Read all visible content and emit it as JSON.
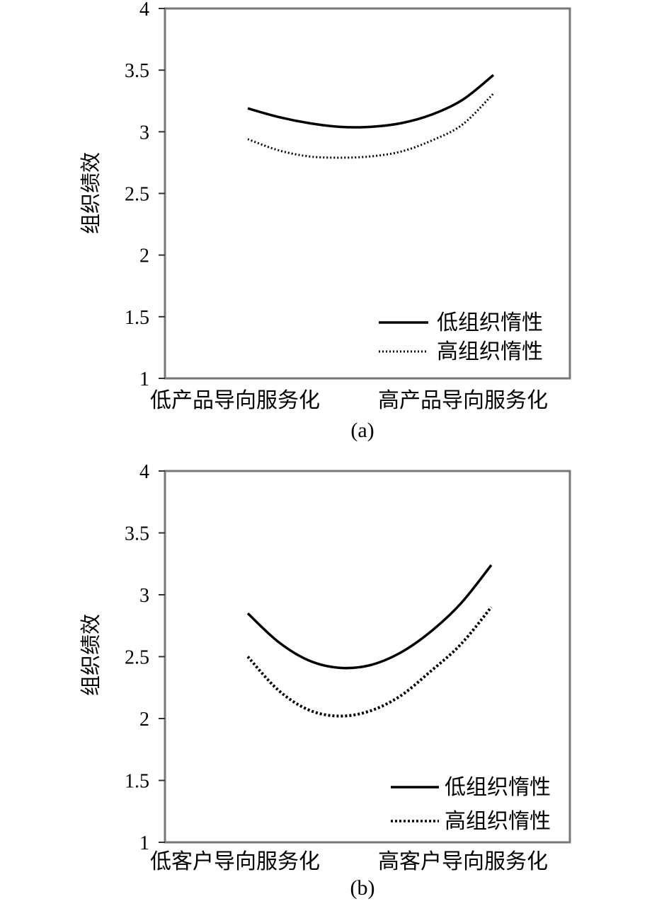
{
  "chart_data": [
    {
      "type": "line",
      "caption": "(a)",
      "ylabel": "组织绩效",
      "categories": [
        "低产品导向服务化",
        "高产品导向服务化"
      ],
      "x": [
        0,
        0.125,
        0.25,
        0.375,
        0.5,
        0.625,
        0.75,
        0.875,
        1
      ],
      "ylim": [
        1,
        4
      ],
      "yticks": [
        "1",
        "1.5",
        "2",
        "2.5",
        "3",
        "3.5",
        "4"
      ],
      "legend": "bottom-right",
      "grid": false,
      "series": [
        {
          "name": "低组织惰性",
          "style": "solid",
          "color": "#000000",
          "values": [
            3.19,
            3.12,
            3.07,
            3.04,
            3.04,
            3.07,
            3.14,
            3.26,
            3.46
          ]
        },
        {
          "name": "高组织惰性",
          "style": "dotted",
          "color": "#000000",
          "values": [
            2.94,
            2.85,
            2.8,
            2.79,
            2.8,
            2.84,
            2.93,
            3.06,
            3.31
          ]
        }
      ]
    },
    {
      "type": "line",
      "caption": "(b)",
      "ylabel": "组织绩效",
      "categories": [
        "低客户导向服务化",
        "高客户导向服务化"
      ],
      "x": [
        0,
        0.125,
        0.25,
        0.375,
        0.5,
        0.625,
        0.75,
        0.875,
        1
      ],
      "ylim": [
        1,
        4
      ],
      "yticks": [
        "1",
        "1.5",
        "2",
        "2.5",
        "3",
        "3.5",
        "4"
      ],
      "legend": "bottom-right",
      "grid": false,
      "series": [
        {
          "name": "低组织惰性",
          "style": "solid",
          "color": "#000000",
          "values": [
            2.85,
            2.62,
            2.47,
            2.41,
            2.43,
            2.53,
            2.7,
            2.93,
            3.24
          ]
        },
        {
          "name": "高组织惰性",
          "style": "dotted",
          "color": "#000000",
          "values": [
            2.5,
            2.23,
            2.07,
            2.02,
            2.06,
            2.18,
            2.38,
            2.6,
            2.9
          ]
        }
      ]
    }
  ]
}
